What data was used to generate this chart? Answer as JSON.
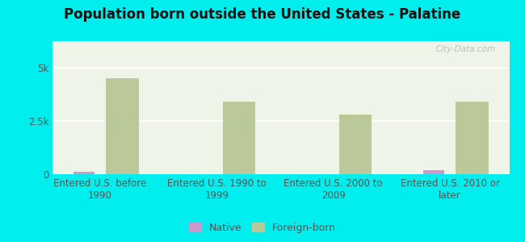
{
  "title": "Population born outside the United States - Palatine",
  "background_outer": "#00EEEE",
  "background_inner": "#eef4e8",
  "categories": [
    "Entered U.S. before\n1990",
    "Entered U.S. 1990 to\n1999",
    "Entered U.S. 2000 to\n2009",
    "Entered U.S. 2010 or\nlater"
  ],
  "native_values": [
    120,
    0,
    0,
    200
  ],
  "foreign_values": [
    4500,
    3400,
    2800,
    3400
  ],
  "native_color": "#cc99cc",
  "foreign_color": "#bbc89a",
  "ylim": [
    0,
    6250
  ],
  "yticks": [
    0,
    2500,
    5000
  ],
  "ytick_labels": [
    "0",
    "2.5k",
    "5k"
  ],
  "native_bar_width": 0.18,
  "foreign_bar_width": 0.28,
  "title_fontsize": 12,
  "axis_label_fontsize": 8.5,
  "legend_fontsize": 9,
  "watermark": "City-Data.com"
}
